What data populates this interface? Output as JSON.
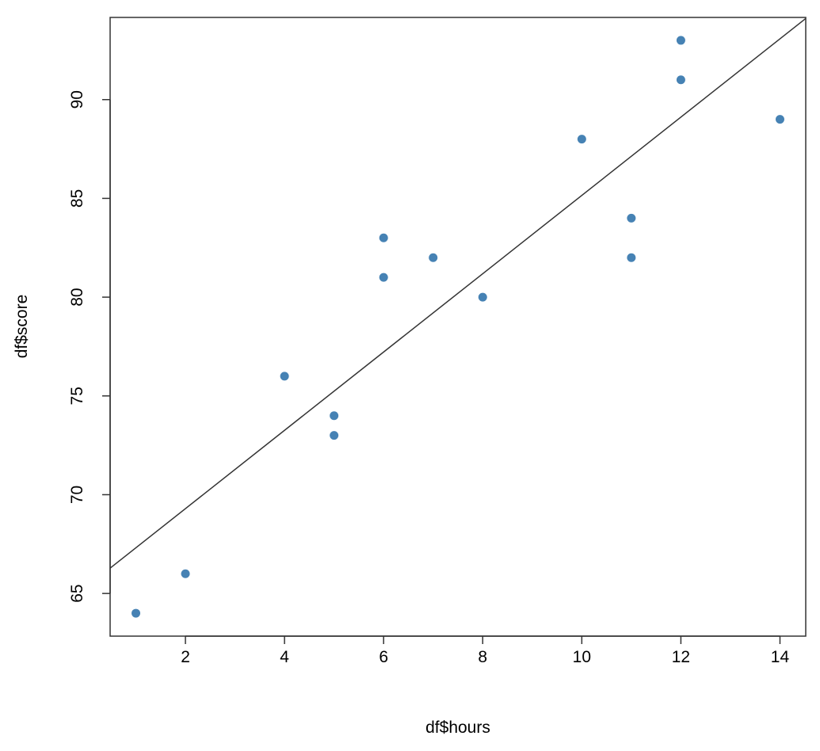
{
  "chart_data": {
    "type": "scatter",
    "x_label": "df$hours",
    "y_label": "df$score",
    "x": [
      1,
      2,
      4,
      5,
      5,
      6,
      6,
      7,
      8,
      10,
      11,
      11,
      12,
      12,
      14
    ],
    "series": [
      {
        "color": "#4682b4",
        "values": [
          64,
          66,
          76,
          74,
          73,
          83,
          81,
          82,
          80,
          88,
          84,
          82,
          93,
          91,
          89
        ]
      }
    ],
    "fit_line": {
      "intercept": 65.33,
      "slope": 1.982,
      "color": "#333333"
    },
    "xlim": [
      0.48,
      14.52
    ],
    "ylim": [
      62.84,
      94.16
    ],
    "xticks": [
      2,
      4,
      6,
      8,
      10,
      12,
      14
    ],
    "yticks": [
      65,
      70,
      75,
      80,
      85,
      90
    ]
  }
}
